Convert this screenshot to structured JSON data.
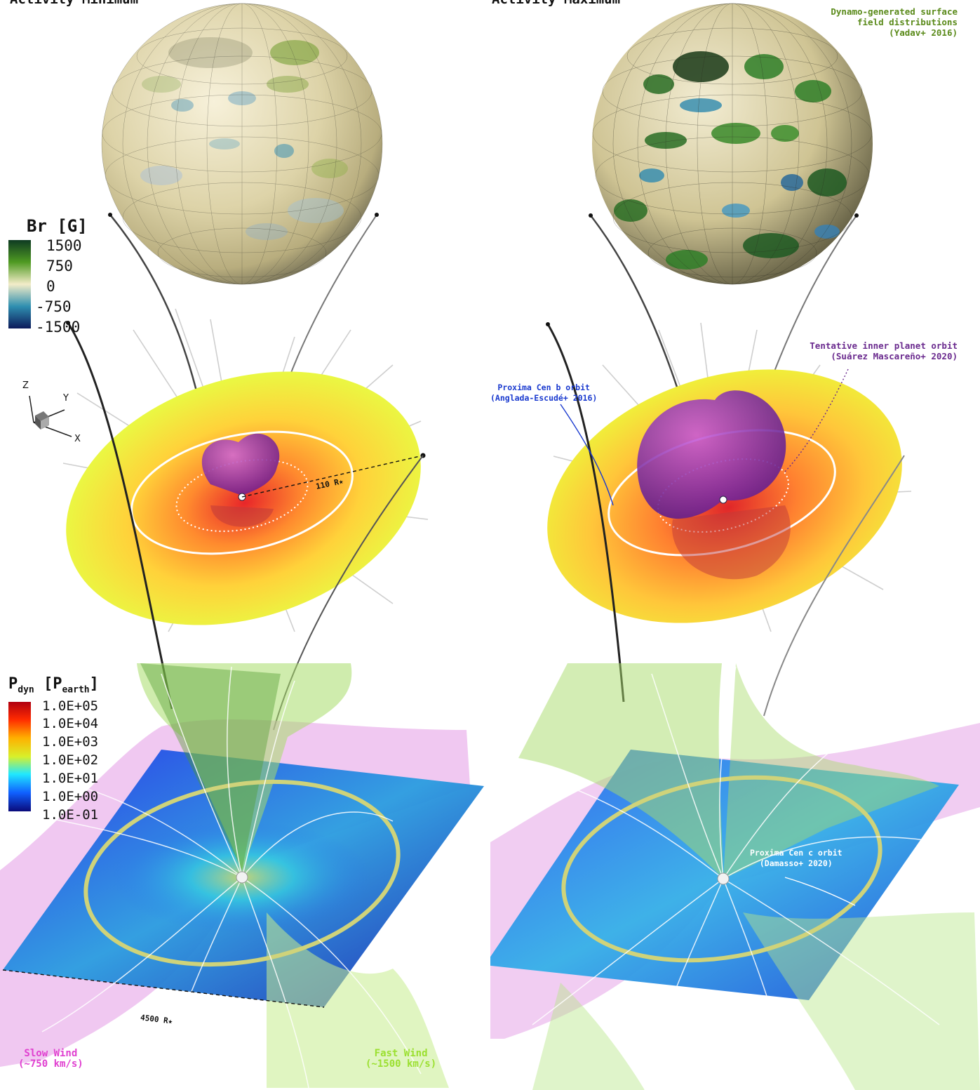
{
  "panels": {
    "left": {
      "title": "Activity Minimum"
    },
    "right": {
      "title": "Activity Maximum"
    }
  },
  "annotations": {
    "dynamo": "Dynamo-generated surface\nfield distributions\n(Yadav+ 2016)",
    "tentative_orbit": "Tentative inner planet orbit\n(Suárez Mascareño+ 2020)",
    "proxima_b": "Proxima Cen b orbit\n(Anglada-Escudé+ 2016)",
    "proxima_c": "Proxima Cen c orbit\n(Damasso+ 2020)",
    "scale_110": "110 R★",
    "scale_4500": "4500 R★",
    "slow_wind": "Slow Wind\n(~750 km/s)",
    "fast_wind": "Fast Wind\n(~1500 km/s)"
  },
  "colorbar_br": {
    "title": "Br [G]",
    "ticks": [
      "1500",
      "750",
      "0",
      "-750",
      "-1500"
    ],
    "colors": [
      "#0e3a22",
      "#4f9a22",
      "#f3ecc8",
      "#2f8fb0",
      "#0c1a5a"
    ]
  },
  "colorbar_pdyn": {
    "title_main": "P",
    "title_sub": "dyn",
    "title_unit_main": "[P",
    "title_unit_sub": "earth",
    "title_unit_close": "]",
    "ticks": [
      "1.0E+05",
      "1.0E+04",
      "1.0E+03",
      "1.0E+02",
      "1.0E+01",
      "1.0E+00",
      "1.0E-01"
    ],
    "colors": [
      "#b00010",
      "#ff2a00",
      "#ffb000",
      "#d8f02a",
      "#20e8ff",
      "#1060ff",
      "#0a0a7a"
    ]
  },
  "axes_triad": {
    "z": "Z",
    "y": "Y",
    "x": "X"
  },
  "colors": {
    "dynamo_note": "#5a8a1a",
    "tentative_note": "#6a2a8e",
    "proxima_b_note": "#1a3acf",
    "proxima_c_note": "#ffffff",
    "slow_wind": "#e040d0",
    "fast_wind": "#9be030"
  }
}
